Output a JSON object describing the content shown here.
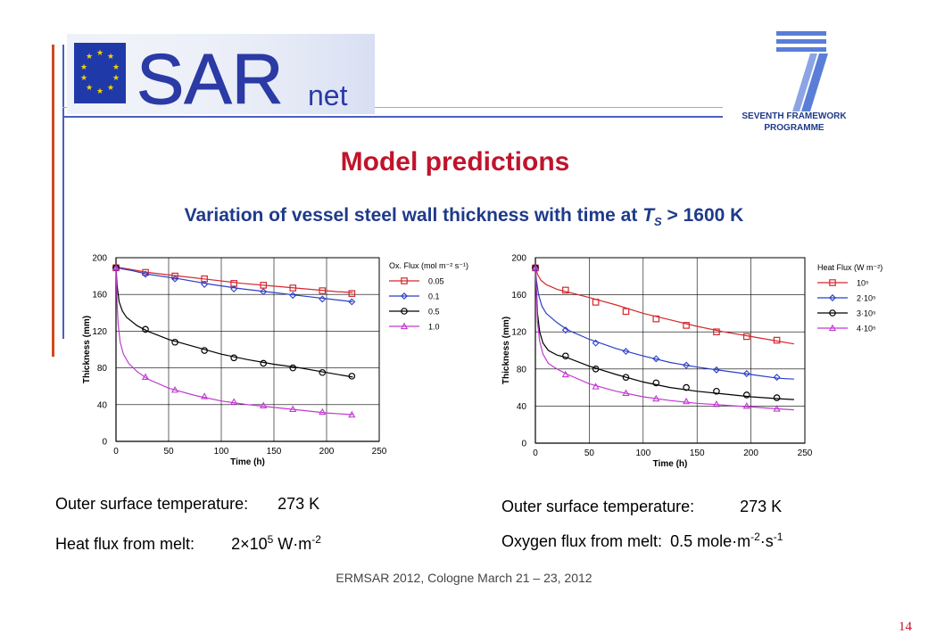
{
  "slide": {
    "title": "Model predictions",
    "subtitle_pre": "Variation of vessel steel wall thickness with time at ",
    "subtitle_var": "T",
    "subtitle_sub": "S",
    "subtitle_post": " > 1600 K",
    "logo_text_main": "SAR",
    "logo_text_sub": "net",
    "fp7_line1": "SEVENTH FRAMEWORK",
    "fp7_line2": "PROGRAMME",
    "left_info": {
      "line1_label": "Outer surface temperature:",
      "line1_value": "273 K",
      "line2_label": "Heat flux from melt:",
      "line2_value": "2×10",
      "line2_exp": "5",
      "line2_unit": " W·m",
      "line2_unit_exp": "-2"
    },
    "right_info": {
      "line1_label": "Outer surface temperature:",
      "line1_value": "273 K",
      "line2_label": "Oxygen flux from melt:",
      "line2_value": "0.5 mole·m",
      "line2_exp1": "-2",
      "line2_mid": "·s",
      "line2_exp2": "-1"
    },
    "footer": "ERMSAR 2012, Cologne March 21 – 23, 2012",
    "page_number": "14"
  },
  "colors": {
    "red": "#d4282c",
    "blue": "#2a3fc8",
    "black": "#000000",
    "magenta": "#c03ad0",
    "title": "#c0142c"
  },
  "chart_data": [
    {
      "type": "line",
      "xlabel": "Time (h)",
      "ylabel": "Thickness (mm)",
      "xlim": [
        0,
        250
      ],
      "ylim": [
        0,
        200
      ],
      "xticks": [
        0,
        50,
        100,
        150,
        200,
        250
      ],
      "yticks": [
        0,
        40,
        80,
        120,
        160,
        200
      ],
      "legend_title": "Ox. Flux (mol m⁻² s⁻¹)",
      "legend_position": "right",
      "series": [
        {
          "name": "0.05",
          "marker": "square",
          "color": "#d4282c",
          "curve": [
            [
              0,
              190
            ],
            [
              5,
              189
            ],
            [
              15,
              187
            ],
            [
              30,
              184
            ],
            [
              60,
              180
            ],
            [
              90,
              176
            ],
            [
              120,
              172
            ],
            [
              150,
              169
            ],
            [
              180,
              166
            ],
            [
              210,
              163
            ],
            [
              225,
              162
            ]
          ],
          "points": [
            [
              0,
              189
            ],
            [
              28,
              184
            ],
            [
              56,
              180
            ],
            [
              84,
              177
            ],
            [
              112,
              172
            ],
            [
              140,
              170
            ],
            [
              168,
              167
            ],
            [
              196,
              164
            ],
            [
              224,
              161
            ]
          ]
        },
        {
          "name": "0.1",
          "marker": "diamond",
          "color": "#2a3fc8",
          "curve": [
            [
              0,
              190
            ],
            [
              5,
              188
            ],
            [
              15,
              186
            ],
            [
              30,
              182
            ],
            [
              60,
              177
            ],
            [
              90,
              171
            ],
            [
              120,
              166
            ],
            [
              150,
              162
            ],
            [
              180,
              158
            ],
            [
              210,
              154
            ],
            [
              225,
              152
            ]
          ],
          "points": [
            [
              0,
              189
            ],
            [
              28,
              182
            ],
            [
              56,
              177
            ],
            [
              84,
              171
            ],
            [
              112,
              166
            ],
            [
              140,
              163
            ],
            [
              168,
              159
            ],
            [
              196,
              155
            ],
            [
              224,
              152
            ]
          ]
        },
        {
          "name": "0.5",
          "marker": "circle",
          "color": "#000000",
          "curve": [
            [
              0,
              190
            ],
            [
              1,
              170
            ],
            [
              3,
              152
            ],
            [
              6,
              142
            ],
            [
              10,
              135
            ],
            [
              20,
              126
            ],
            [
              30,
              120
            ],
            [
              50,
              111
            ],
            [
              75,
              103
            ],
            [
              100,
              95
            ],
            [
              125,
              89
            ],
            [
              150,
              84
            ],
            [
              175,
              80
            ],
            [
              200,
              75
            ],
            [
              225,
              70
            ]
          ],
          "points": [
            [
              0,
              189
            ],
            [
              28,
              122
            ],
            [
              56,
              108
            ],
            [
              84,
              99
            ],
            [
              112,
              91
            ],
            [
              140,
              85
            ],
            [
              168,
              80
            ],
            [
              196,
              75
            ],
            [
              224,
              71
            ]
          ]
        },
        {
          "name": "1.0",
          "marker": "triangle",
          "color": "#c03ad0",
          "curve": [
            [
              0,
              190
            ],
            [
              0.5,
              170
            ],
            [
              1,
              150
            ],
            [
              2,
              128
            ],
            [
              4,
              108
            ],
            [
              7,
              95
            ],
            [
              12,
              85
            ],
            [
              20,
              76
            ],
            [
              30,
              68
            ],
            [
              50,
              58
            ],
            [
              75,
              50
            ],
            [
              100,
              44
            ],
            [
              125,
              40
            ],
            [
              150,
              37
            ],
            [
              175,
              34
            ],
            [
              200,
              31
            ],
            [
              225,
              29
            ]
          ],
          "points": [
            [
              0,
              189
            ],
            [
              28,
              70
            ],
            [
              56,
              56
            ],
            [
              84,
              49
            ],
            [
              112,
              43
            ],
            [
              140,
              39
            ],
            [
              168,
              35
            ],
            [
              196,
              32
            ],
            [
              224,
              29
            ]
          ]
        }
      ]
    },
    {
      "type": "line",
      "xlabel": "Time (h)",
      "ylabel": "Thickness (mm)",
      "xlim": [
        0,
        250
      ],
      "ylim": [
        0,
        200
      ],
      "xticks": [
        0,
        50,
        100,
        150,
        200,
        250
      ],
      "yticks": [
        0,
        40,
        80,
        120,
        160,
        200
      ],
      "legend_title": "Heat Flux (W m⁻²)",
      "legend_position": "right",
      "series": [
        {
          "name": "10⁵",
          "marker": "square",
          "color": "#d4282c",
          "curve": [
            [
              0,
              190
            ],
            [
              2,
              182
            ],
            [
              5,
              176
            ],
            [
              10,
              171
            ],
            [
              20,
              166
            ],
            [
              30,
              163
            ],
            [
              50,
              157
            ],
            [
              75,
              149
            ],
            [
              100,
              140
            ],
            [
              125,
              133
            ],
            [
              150,
              126
            ],
            [
              175,
              120
            ],
            [
              200,
              115
            ],
            [
              225,
              110
            ],
            [
              240,
              107
            ]
          ],
          "points": [
            [
              0,
              189
            ],
            [
              28,
              165
            ],
            [
              56,
              152
            ],
            [
              84,
              142
            ],
            [
              112,
              134
            ],
            [
              140,
              127
            ],
            [
              168,
              120
            ],
            [
              196,
              115
            ],
            [
              224,
              111
            ]
          ]
        },
        {
          "name": "2·10⁵",
          "marker": "diamond",
          "color": "#2a3fc8",
          "curve": [
            [
              0,
              190
            ],
            [
              1,
              175
            ],
            [
              3,
              160
            ],
            [
              6,
              148
            ],
            [
              10,
              140
            ],
            [
              20,
              130
            ],
            [
              30,
              122
            ],
            [
              50,
              112
            ],
            [
              75,
              102
            ],
            [
              100,
              94
            ],
            [
              125,
              87
            ],
            [
              150,
              82
            ],
            [
              175,
              78
            ],
            [
              200,
              74
            ],
            [
              225,
              70
            ],
            [
              240,
              69
            ]
          ],
          "points": [
            [
              0,
              189
            ],
            [
              28,
              122
            ],
            [
              56,
              108
            ],
            [
              84,
              99
            ],
            [
              112,
              91
            ],
            [
              140,
              84
            ],
            [
              168,
              79
            ],
            [
              196,
              75
            ],
            [
              224,
              71
            ]
          ]
        },
        {
          "name": "3·10⁵",
          "marker": "circle",
          "color": "#000000",
          "curve": [
            [
              0,
              190
            ],
            [
              1,
              165
            ],
            [
              2,
              140
            ],
            [
              4,
              120
            ],
            [
              7,
              108
            ],
            [
              12,
              100
            ],
            [
              20,
              95
            ],
            [
              30,
              92
            ],
            [
              50,
              83
            ],
            [
              75,
              74
            ],
            [
              100,
              66
            ],
            [
              125,
              60
            ],
            [
              150,
              56
            ],
            [
              175,
              53
            ],
            [
              200,
              50
            ],
            [
              225,
              48
            ],
            [
              240,
              47
            ]
          ],
          "points": [
            [
              0,
              189
            ],
            [
              28,
              94
            ],
            [
              56,
              80
            ],
            [
              84,
              71
            ],
            [
              112,
              65
            ],
            [
              140,
              60
            ],
            [
              168,
              56
            ],
            [
              196,
              52
            ],
            [
              224,
              49
            ]
          ]
        },
        {
          "name": "4·10⁵",
          "marker": "triangle",
          "color": "#c03ad0",
          "curve": [
            [
              0,
              190
            ],
            [
              1,
              160
            ],
            [
              2,
              130
            ],
            [
              4,
              110
            ],
            [
              7,
              96
            ],
            [
              12,
              86
            ],
            [
              20,
              80
            ],
            [
              30,
              74
            ],
            [
              50,
              64
            ],
            [
              75,
              56
            ],
            [
              100,
              50
            ],
            [
              125,
              46
            ],
            [
              150,
              43
            ],
            [
              175,
              41
            ],
            [
              200,
              39
            ],
            [
              225,
              37
            ],
            [
              240,
              36
            ]
          ],
          "points": [
            [
              0,
              189
            ],
            [
              28,
              74
            ],
            [
              56,
              61
            ],
            [
              84,
              54
            ],
            [
              112,
              48
            ],
            [
              140,
              45
            ],
            [
              168,
              42
            ],
            [
              196,
              40
            ],
            [
              224,
              37
            ]
          ]
        }
      ]
    }
  ]
}
